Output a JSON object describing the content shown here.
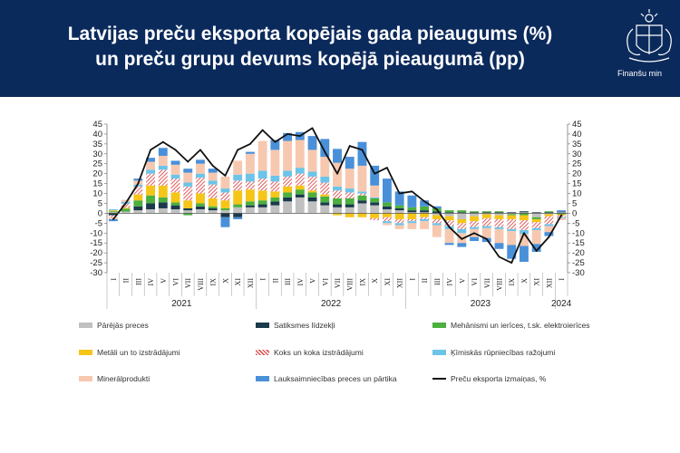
{
  "header": {
    "title_line1": "Latvijas preču eksporta kopējais gada pieaugums (%)",
    "title_line2": "un preču grupu devums kopējā pieaugumā (pp)",
    "logo_text": "Finanšu min"
  },
  "colors": {
    "header_bg": "#0b2a5c",
    "other": "#c0c0c0",
    "vehicles": "#1b3a4b",
    "machinery": "#4caf3e",
    "metals": "#f5c518",
    "wood": "#e05a5a",
    "chemicals": "#6cc4e8",
    "mineral": "#f7c8b0",
    "agri": "#4a90d9",
    "line": "#111111"
  },
  "chart_data": {
    "type": "bar",
    "stacked": true,
    "title": "",
    "xlabel": "",
    "ylabel": "",
    "ylim": [
      -30,
      45
    ],
    "yticks": [
      -30,
      -25,
      -20,
      -15,
      -10,
      -5,
      0,
      5,
      10,
      15,
      20,
      25,
      30,
      35,
      40,
      45
    ],
    "categories": [
      "I",
      "II",
      "III",
      "IV",
      "V",
      "VI",
      "VII",
      "VIII",
      "IX",
      "X",
      "XI",
      "XII",
      "I",
      "II",
      "III",
      "IV",
      "V",
      "VI",
      "VII",
      "VIII",
      "IX",
      "X",
      "XI",
      "XII",
      "I",
      "II",
      "III",
      "IV",
      "V",
      "VI",
      "VII",
      "VIII",
      "IX",
      "X",
      "XI",
      "XII",
      "I"
    ],
    "year_labels": [
      {
        "label": "2021",
        "start": 0,
        "end": 11
      },
      {
        "label": "2022",
        "start": 12,
        "end": 23
      },
      {
        "label": "2023",
        "start": 24,
        "end": 35
      },
      {
        "label": "2024",
        "start": 36,
        "end": 36
      }
    ],
    "series": [
      {
        "name": "Pārējās preces",
        "color_key": "other",
        "values": [
          0.5,
          0.8,
          1.5,
          2,
          2.5,
          2,
          1.5,
          2,
          1.5,
          1.5,
          3,
          3,
          3,
          4,
          6,
          8,
          6,
          4,
          3,
          3,
          5,
          4,
          2,
          1.5,
          0.5,
          0.5,
          -1,
          -1.5,
          -3,
          -1.5,
          -0.5,
          -1,
          -0.5,
          0.5,
          -2,
          -0.5,
          0.5
        ]
      },
      {
        "name": "Satiksmes līdzekļi",
        "color_key": "vehicles",
        "values": [
          -1,
          0,
          2,
          3,
          3,
          2,
          1,
          1.5,
          1,
          -2,
          -2,
          1,
          1.5,
          2,
          2,
          1.5,
          2,
          1.5,
          1.5,
          1.5,
          1.5,
          1.5,
          1.5,
          1,
          1,
          1,
          1,
          0.5,
          0.5,
          0.5,
          0.5,
          0.5,
          0.5,
          0.5,
          0.5,
          0.5,
          0.3
        ]
      },
      {
        "name": "Mehānismi un ierīces, t.sk. elektroierīces",
        "color_key": "machinery",
        "values": [
          0.5,
          1.5,
          3,
          4,
          2.5,
          1.5,
          -1,
          1.5,
          1,
          1,
          1.5,
          2,
          2,
          2,
          2.5,
          2.5,
          2.5,
          3,
          3,
          3,
          2.5,
          2,
          2,
          1.5,
          1.5,
          2,
          1.5,
          1,
          1,
          0.5,
          0.5,
          0.5,
          -0.5,
          -1,
          -1,
          0.5,
          -0.5
        ]
      },
      {
        "name": "Metāli un to izstrādājumi",
        "color_key": "metals",
        "values": [
          0.5,
          0.5,
          3,
          5,
          6,
          5,
          4,
          5,
          4,
          4,
          7,
          6,
          5,
          3,
          3,
          2,
          1,
          1,
          -1,
          -2,
          -2,
          -2.5,
          -2,
          -3,
          -3,
          -2,
          -2,
          -2,
          -2,
          -2.5,
          -2,
          -2,
          -2,
          -2.5,
          -1.5,
          -1,
          -0.5
        ]
      },
      {
        "name": "Koks un koka izstrādājumi",
        "color_key": "wood",
        "values": [
          -1,
          2,
          4,
          6,
          8,
          7,
          7,
          8,
          7,
          4,
          5,
          4,
          6,
          5,
          5,
          6,
          7,
          6,
          4,
          3,
          1,
          -1,
          -2,
          -2,
          -1,
          -1,
          -2,
          -3,
          -3,
          -3,
          -4,
          -4,
          -5,
          -5,
          -3,
          -4,
          -1
        ]
      },
      {
        "name": "Ķīmiskās rūpniecības ražojumi",
        "color_key": "chemicals",
        "values": [
          0.5,
          1,
          1,
          2,
          2,
          2,
          2,
          2,
          2,
          2,
          3,
          4,
          4,
          3,
          3,
          3,
          2.5,
          3,
          2,
          2,
          1,
          0.5,
          -1,
          -1,
          -1,
          -1,
          -1,
          -1.5,
          -2,
          -1,
          -1,
          -1,
          -1,
          -2,
          -1,
          -1,
          -0.5
        ]
      },
      {
        "name": "Minerālprodukti",
        "color_key": "mineral",
        "values": [
          -1,
          1,
          2,
          4,
          5,
          5,
          5,
          5,
          4,
          6,
          7,
          10,
          15,
          13,
          15,
          14,
          11,
          10,
          12,
          10,
          13,
          6,
          -1,
          -2,
          -3,
          -4,
          -6,
          -7,
          -5,
          -4,
          -5,
          -7,
          -7,
          -6,
          -7,
          -3,
          -1
        ]
      },
      {
        "name": "Lauksaimniecības preces un pārtika",
        "color_key": "agri",
        "values": [
          -1,
          0,
          1,
          2,
          4,
          2,
          2,
          2,
          2,
          -5,
          -1,
          1,
          0,
          5,
          4,
          4,
          7,
          9,
          7,
          6,
          12,
          10,
          12,
          7,
          6,
          3,
          1,
          -1,
          -2,
          -2,
          -2,
          -3,
          -7,
          -8,
          -4,
          -2,
          0.7
        ]
      }
    ],
    "line_series": {
      "name": "Preču eksporta izmaiņas, %",
      "color_key": "line",
      "values": [
        -3,
        5,
        15,
        32,
        36,
        32,
        26,
        32,
        24,
        19,
        32,
        35,
        42,
        36,
        40,
        39,
        43,
        31,
        20,
        34,
        32,
        20,
        23,
        10,
        11,
        6,
        2,
        -7,
        -13,
        -10,
        -13,
        -22,
        -25,
        -10,
        -19,
        -12,
        -1
      ]
    },
    "legend_position": "bottom"
  }
}
